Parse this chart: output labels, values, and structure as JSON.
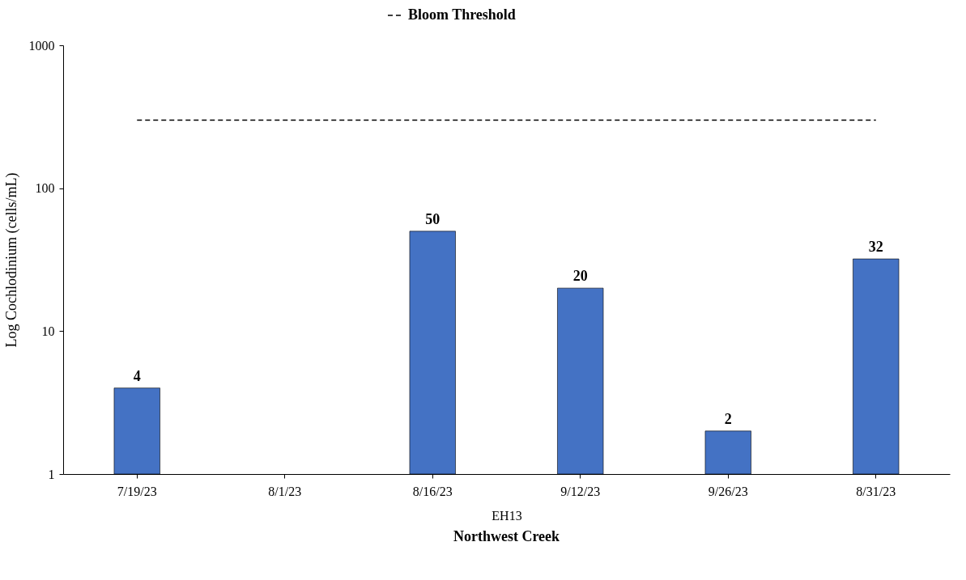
{
  "chart_data": {
    "type": "bar",
    "categories": [
      "7/19/23",
      "8/1/23",
      "8/16/23",
      "9/12/23",
      "9/26/23",
      "8/31/23"
    ],
    "series": [
      {
        "color": "#4472c4",
        "values": [
          4,
          null,
          50,
          20,
          2,
          32
        ],
        "value_labels": [
          "4",
          null,
          "50",
          "20",
          "2",
          "32"
        ]
      },
      {
        "name": "Bloom Threshold",
        "type": "line",
        "line_style": "dashed",
        "color": "#000000",
        "values": [
          300,
          300,
          300,
          300,
          300,
          300
        ]
      }
    ],
    "ylim": [
      1,
      1000
    ],
    "yticks": [
      1,
      10,
      100,
      1000
    ],
    "log": true,
    "legend": "top",
    "xlabel": "EH13",
    "ylabel": "Log Cochlodinium (cells/mL)",
    "annotations": [
      "Northwest Creek"
    ]
  }
}
